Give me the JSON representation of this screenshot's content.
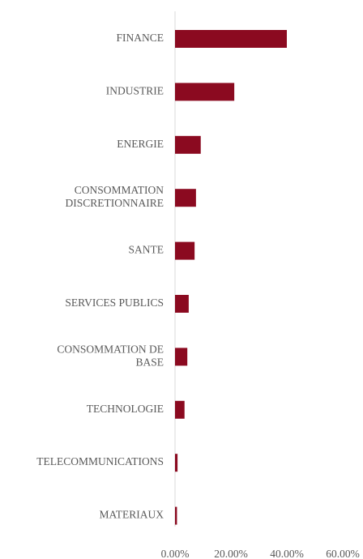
{
  "chart_data": {
    "type": "bar",
    "orientation": "horizontal",
    "categories": [
      "FINANCE",
      "INDUSTRIE",
      "ENERGIE",
      "CONSOMMATION DISCRETIONNAIRE",
      "SANTE",
      "SERVICES PUBLICS",
      "CONSOMMATION DE BASE",
      "TECHNOLOGIE",
      "TELECOMMUNICATIONS",
      "MATERIAUX"
    ],
    "category_label_lines": [
      [
        "FINANCE"
      ],
      [
        "INDUSTRIE"
      ],
      [
        "ENERGIE"
      ],
      [
        "CONSOMMATION",
        "DISCRETIONNAIRE"
      ],
      [
        "SANTE"
      ],
      [
        "SERVICES PUBLICS"
      ],
      [
        "CONSOMMATION DE",
        "BASE"
      ],
      [
        "TECHNOLOGIE"
      ],
      [
        "TELECOMMUNICATIONS"
      ],
      [
        "MATERIAUX"
      ]
    ],
    "values": [
      40.0,
      21.2,
      9.2,
      7.5,
      7.0,
      4.9,
      4.4,
      3.4,
      0.9,
      0.7
    ],
    "unit": "%",
    "x_ticks": [
      "0.00%",
      "20.00%",
      "40.00%",
      "60.00%"
    ],
    "xlim": [
      0,
      60
    ],
    "bar_color": "#8B0A20",
    "title": "",
    "xlabel": "",
    "ylabel": "",
    "grid": false,
    "legend": "none"
  }
}
